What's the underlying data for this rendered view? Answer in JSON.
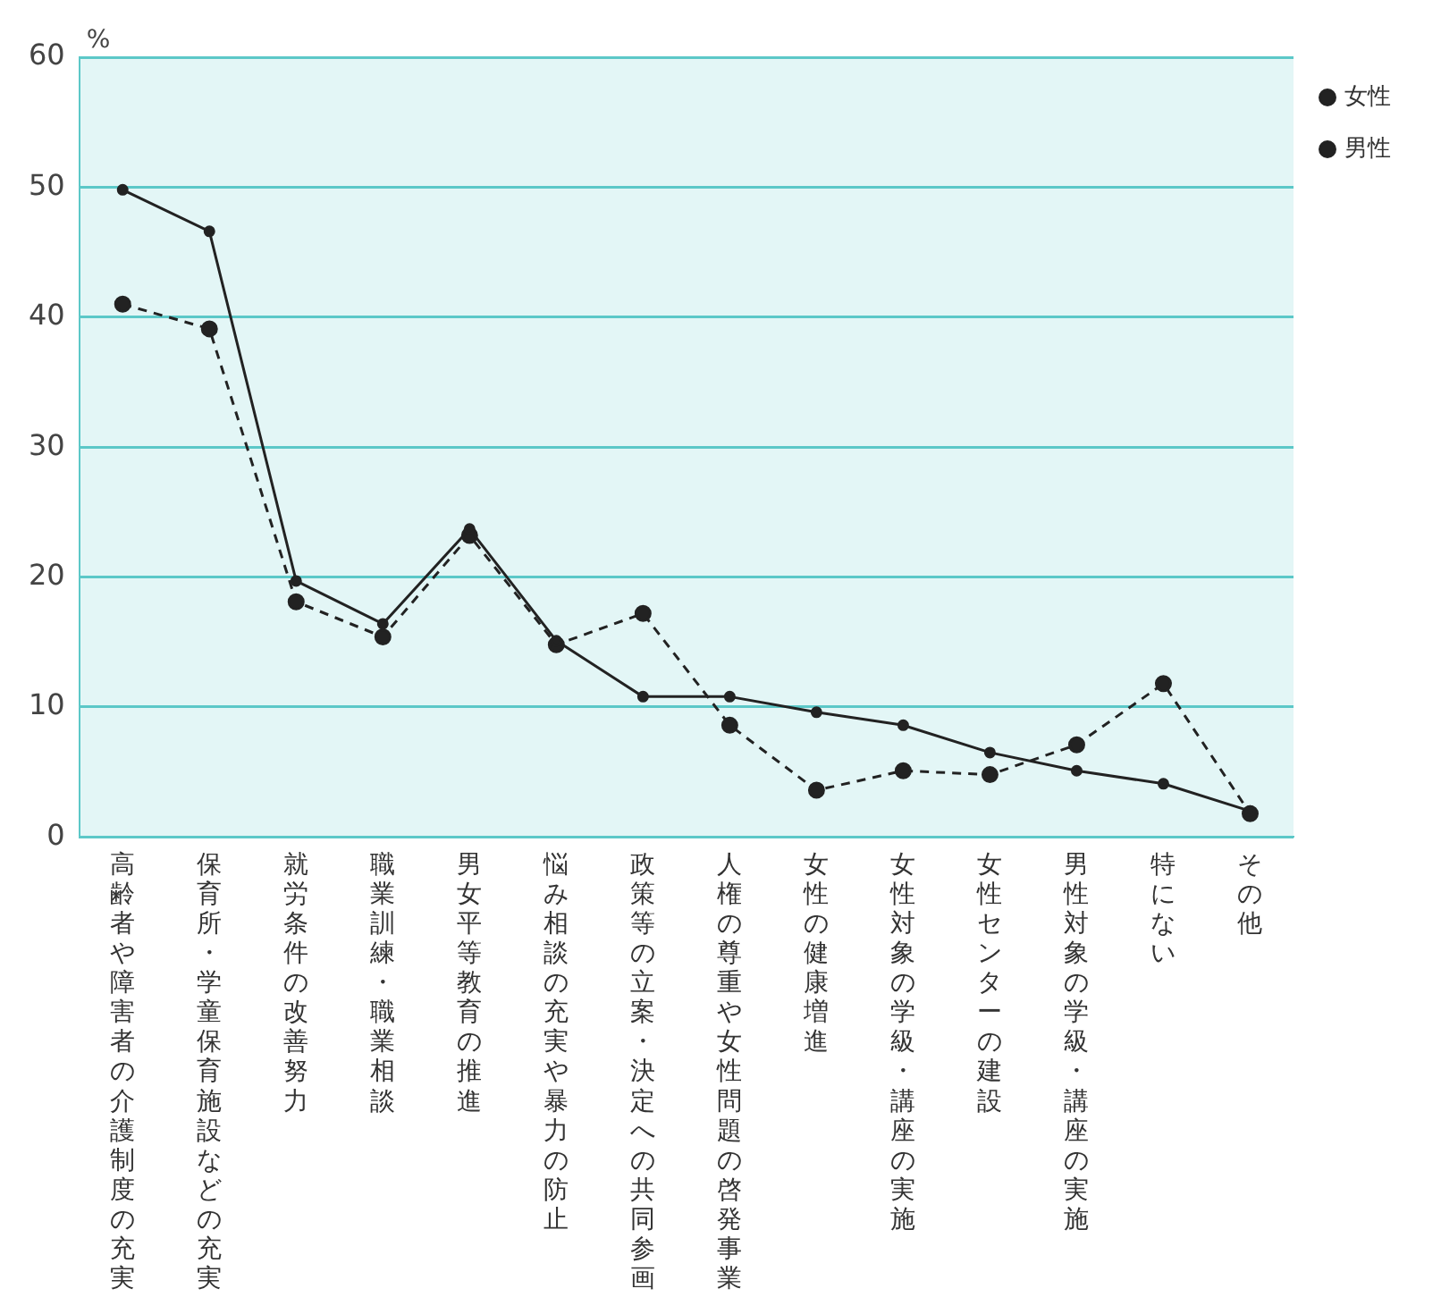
{
  "chart_data": {
    "type": "line",
    "ylabel": "%",
    "categories": [
      "高齢者や障害者の介護制度の充実",
      "保育所・学童保育施設などの充実",
      "就労条件の改善努力",
      "職業訓練・職業相談",
      "男女平等教育の推進",
      "悩み相談の充実や暴力の防止",
      "政策等の立案・決定への共同参画",
      "人権の尊重や女性問題の啓発事業",
      "女性の健康増進",
      "女性対象の学級・講座の実施",
      "女性センターの建設",
      "男性対象の学級・講座の実施",
      "特にない",
      "その他"
    ],
    "series": [
      {
        "name": "女性",
        "color": "#222222",
        "line_style": "solid",
        "values": [
          49.8,
          46.6,
          19.7,
          16.4,
          23.7,
          15.1,
          10.8,
          10.8,
          9.6,
          8.6,
          6.5,
          5.1,
          4.1,
          2.0
        ]
      },
      {
        "name": "男性",
        "color": "#222222",
        "line_style": "dashed",
        "values": [
          41.0,
          39.1,
          18.1,
          15.4,
          23.2,
          14.8,
          17.2,
          8.6,
          3.6,
          5.1,
          4.8,
          7.1,
          11.8,
          1.8
        ]
      }
    ],
    "ylim": [
      0,
      60
    ],
    "yticks": [
      0,
      10,
      20,
      30,
      40,
      50,
      60
    ],
    "grid": "y",
    "legend": "top right",
    "marker": "circle"
  }
}
